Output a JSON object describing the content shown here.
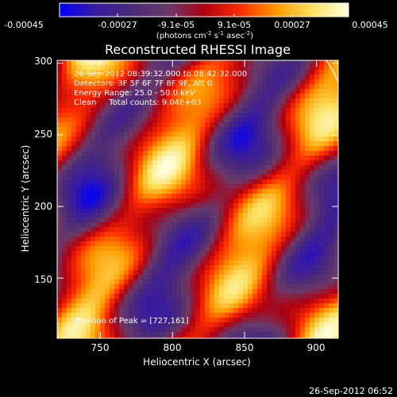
{
  "colorbar": {
    "ticks": [
      "-0.00045",
      "-0.00027",
      "-9.1e-05",
      "9.1e-05",
      "0.00027",
      "0.00045"
    ],
    "unit_main": "(photons cm",
    "unit_exp1": "-2",
    "unit_mid": " s",
    "unit_exp2": "-1",
    "unit_tail": " asec",
    "unit_exp3": "-2",
    "unit_close": ")",
    "stops": [
      "#0000ff",
      "#3a1aa0",
      "#4a2a78",
      "#6a3a6a",
      "#b00010",
      "#ff2a00",
      "#ff9a00",
      "#ffe060",
      "#ffffe0"
    ]
  },
  "chart_data": {
    "type": "heatmap",
    "title": "Reconstructed RHESSI Image",
    "xlabel": "Heliocentric X (arcsec)",
    "ylabel": "Heliocentric Y (arcsec)",
    "xlim": [
      720,
      915
    ],
    "ylim": [
      108,
      302
    ],
    "xticks": [
      "750",
      "800",
      "850",
      "900"
    ],
    "yticks": [
      "150",
      "200",
      "250",
      "300"
    ],
    "annotations": [
      "26-Sep-2012 08:39:32.000 to 08:42:32.000",
      "Detectors: 3F 5F 6F 7F 8F 9F, Att 0",
      "Energy Range: 25.0 - 50.0 keV",
      "Clean     Total counts: 9.04E+03"
    ],
    "peak_label": "Position of Peak = [727,161]",
    "peak": [
      727,
      161
    ],
    "total_counts": "9.04E+03",
    "energy_range_kev": [
      25.0,
      50.0
    ],
    "colorscale_range": [
      -0.00045,
      0.00045
    ]
  },
  "footer_timestamp": "26-Sep-2012 06:52"
}
